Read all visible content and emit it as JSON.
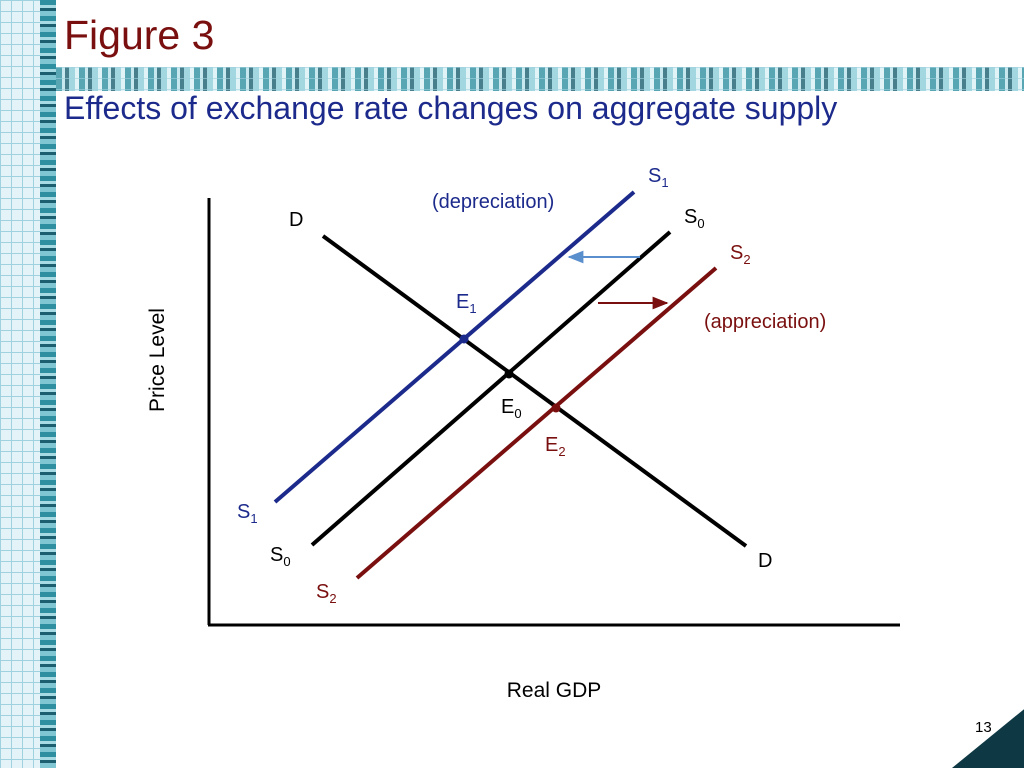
{
  "slide": {
    "title": "Figure 3",
    "subtitle": "Effects of exchange rate changes on aggregate supply",
    "page_number": "13"
  },
  "diagram": {
    "y_axis_label": "Price Level",
    "x_axis_label": "Real GDP",
    "curves": {
      "demand": {
        "label": "D",
        "color": "#000000"
      },
      "s0": {
        "label": "S",
        "sub": "0",
        "color": "#000000"
      },
      "s1": {
        "label": "S",
        "sub": "1",
        "color": "#1c2a8c"
      },
      "s2": {
        "label": "S",
        "sub": "2",
        "color": "#7a0f0f"
      }
    },
    "points": {
      "e0": {
        "label": "E",
        "sub": "0"
      },
      "e1": {
        "label": "E",
        "sub": "1"
      },
      "e2": {
        "label": "E",
        "sub": "2"
      }
    },
    "annotations": {
      "depreciation": "(depreciation)",
      "appreciation": "(appreciation)"
    },
    "arrow_colors": {
      "left": "#5a8fce",
      "right": "#7a0f0f"
    }
  }
}
